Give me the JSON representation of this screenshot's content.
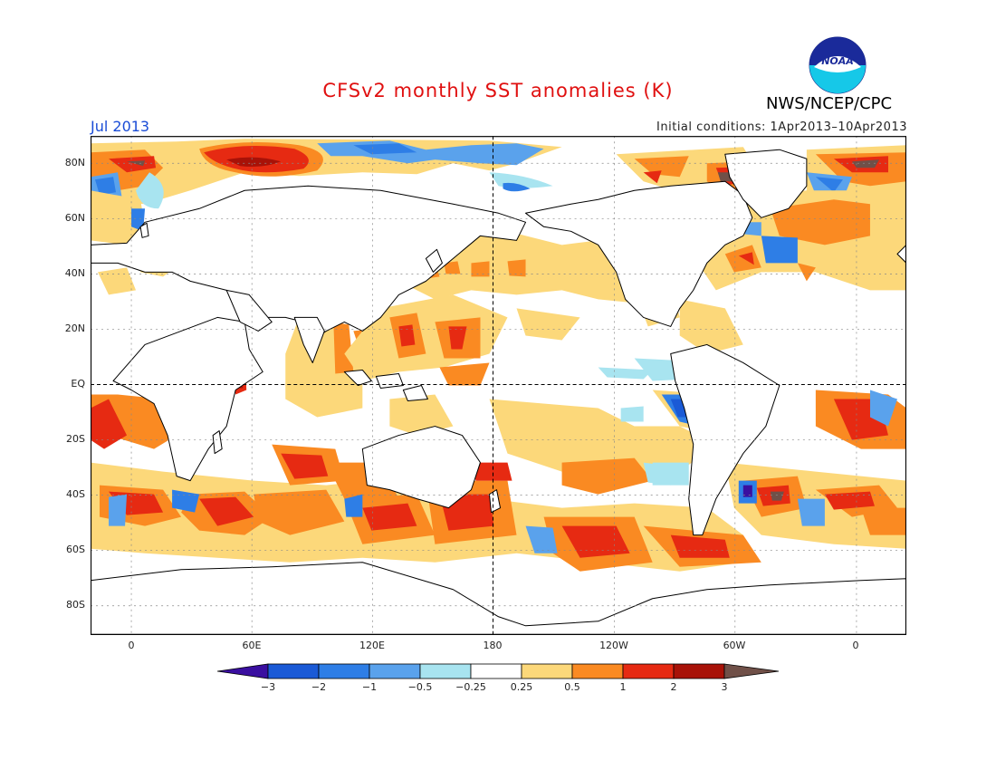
{
  "header": {
    "title": "CFSv2 monthly SST anomalies (K)",
    "agency": "NWS/NCEP/CPC",
    "logo_text": "NOAA",
    "month_label": "Jul 2013",
    "initial_conditions": "Initial conditions: 1Apr2013–10Apr2013"
  },
  "map": {
    "lat_labels": [
      "80N",
      "60N",
      "40N",
      "20N",
      "EQ",
      "20S",
      "40S",
      "60S",
      "80S"
    ],
    "lon_labels": [
      "0",
      "60E",
      "120E",
      "180",
      "120W",
      "60W",
      "0"
    ],
    "ocean_color": "#ffffff",
    "land_color": "#ffffff"
  },
  "colorbar": {
    "labels": [
      "−3",
      "−2",
      "−1",
      "−0.5",
      "−0.25",
      "0.25",
      "0.5",
      "1",
      "2",
      "3"
    ],
    "colors": [
      "#3a0fa0",
      "#1a5ad6",
      "#2e7ee6",
      "#5aa2ec",
      "#a8e4f0",
      "#ffffff",
      "#fcd87a",
      "#fa8a22",
      "#e62a12",
      "#a81208",
      "#705048"
    ]
  }
}
